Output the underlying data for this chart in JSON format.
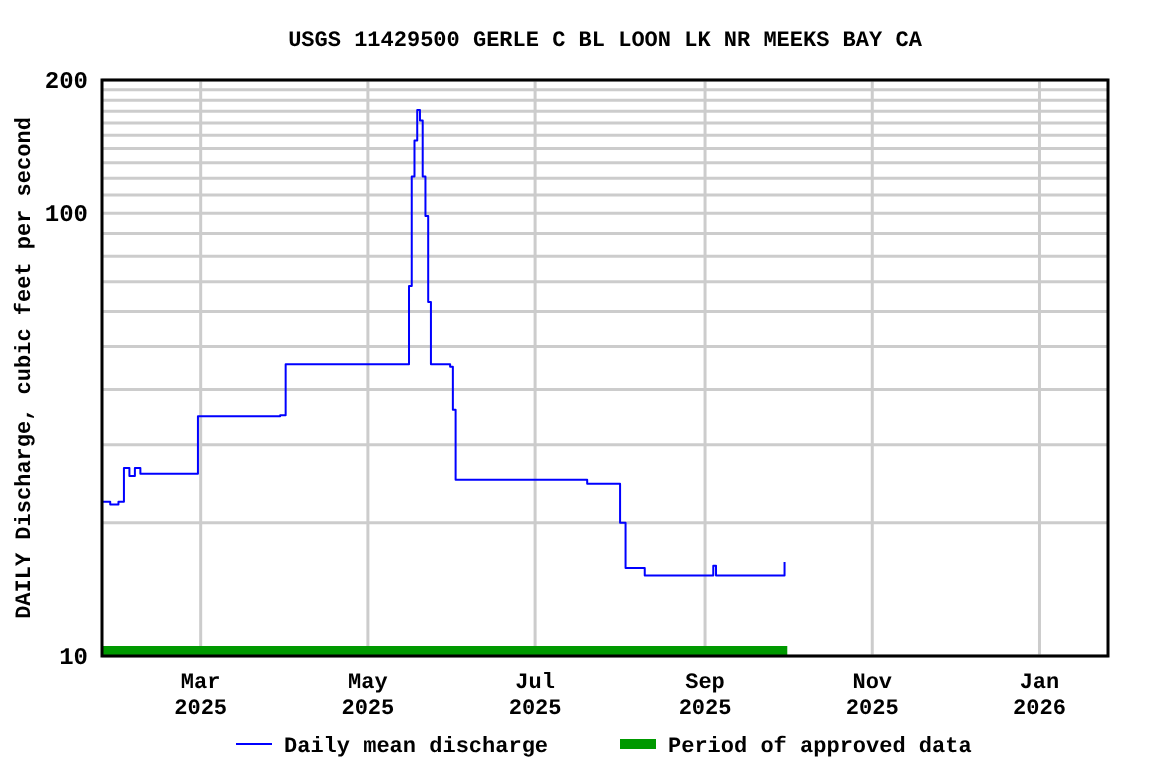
{
  "chart_data": {
    "type": "step",
    "title": "USGS 11429500 GERLE C BL LOON LK NR MEEKS BAY CA",
    "ylabel": "DAILY Discharge, cubic feet per second",
    "x": [
      "2025-01-24",
      "2025-01-27",
      "2025-01-30",
      "2025-02-01",
      "2025-02-03",
      "2025-02-05",
      "2025-02-07",
      "2025-02-15",
      "2025-02-26",
      "2025-02-28",
      "2025-03-15",
      "2025-03-30",
      "2025-04-01",
      "2025-04-20",
      "2025-05-15",
      "2025-05-16",
      "2025-05-17",
      "2025-05-18",
      "2025-05-19",
      "2025-05-20",
      "2025-05-21",
      "2025-05-22",
      "2025-05-23",
      "2025-05-24",
      "2025-05-31",
      "2025-06-01",
      "2025-06-02",
      "2025-07-01",
      "2025-07-20",
      "2025-07-31",
      "2025-08-01",
      "2025-08-03",
      "2025-08-10",
      "2025-08-14",
      "2025-08-20",
      "2025-09-03",
      "2025-09-04",
      "2025-09-05",
      "2025-09-10",
      "2025-09-29",
      "2025-09-30"
    ],
    "series": [
      {
        "name": "Daily mean discharge",
        "color": "#0000ff",
        "values": [
          22.3,
          22.0,
          22.3,
          26.6,
          25.5,
          26.6,
          25.8,
          25.8,
          25.8,
          34.8,
          34.8,
          35.0,
          45.6,
          45.6,
          45.6,
          68.5,
          121,
          146,
          171,
          162,
          121,
          98.6,
          63,
          45.6,
          45.0,
          36,
          25.0,
          25.0,
          24.5,
          24.5,
          20,
          15.8,
          15.2,
          15.2,
          15.2,
          15.2,
          16.0,
          15.2,
          15.2,
          15.2,
          16.3
        ]
      },
      {
        "name": "Period of approved data",
        "type": "line",
        "color": "#009900",
        "x": [
          "2025-01-24",
          "2025-10-01"
        ],
        "values": [
          10.26,
          10.26
        ]
      }
    ],
    "xlim": [
      "2025-01-24",
      "2026-01-26"
    ],
    "xticks": [
      {
        "value": "2025-03-01",
        "label": "Mar 2025"
      },
      {
        "value": "2025-05-01",
        "label": "May 2025"
      },
      {
        "value": "2025-07-01",
        "label": "Jul 2025"
      },
      {
        "value": "2025-09-01",
        "label": "Sep 2025"
      },
      {
        "value": "2025-11-01",
        "label": "Nov 2025"
      },
      {
        "value": "2026-01-01",
        "label": "Jan 2026"
      }
    ],
    "ylim": [
      10,
      200
    ],
    "log": "y",
    "yticks": [
      10,
      {
        "value": 20,
        "label": null
      },
      {
        "value": 30,
        "label": null
      },
      {
        "value": 40,
        "label": null
      },
      {
        "value": 50,
        "label": null
      },
      {
        "value": 60,
        "label": null
      },
      {
        "value": 70,
        "label": null
      },
      {
        "value": 80,
        "label": null
      },
      {
        "value": 90,
        "label": null
      },
      100,
      {
        "value": 110,
        "label": null
      },
      {
        "value": 120,
        "label": null
      },
      {
        "value": 130,
        "label": null
      },
      {
        "value": 140,
        "label": null
      },
      {
        "value": 150,
        "label": null
      },
      {
        "value": 160,
        "label": null
      },
      {
        "value": 170,
        "label": null
      },
      {
        "value": 180,
        "label": null
      },
      {
        "value": 190,
        "label": null
      },
      200
    ],
    "grid": true,
    "legend": "bottom"
  }
}
